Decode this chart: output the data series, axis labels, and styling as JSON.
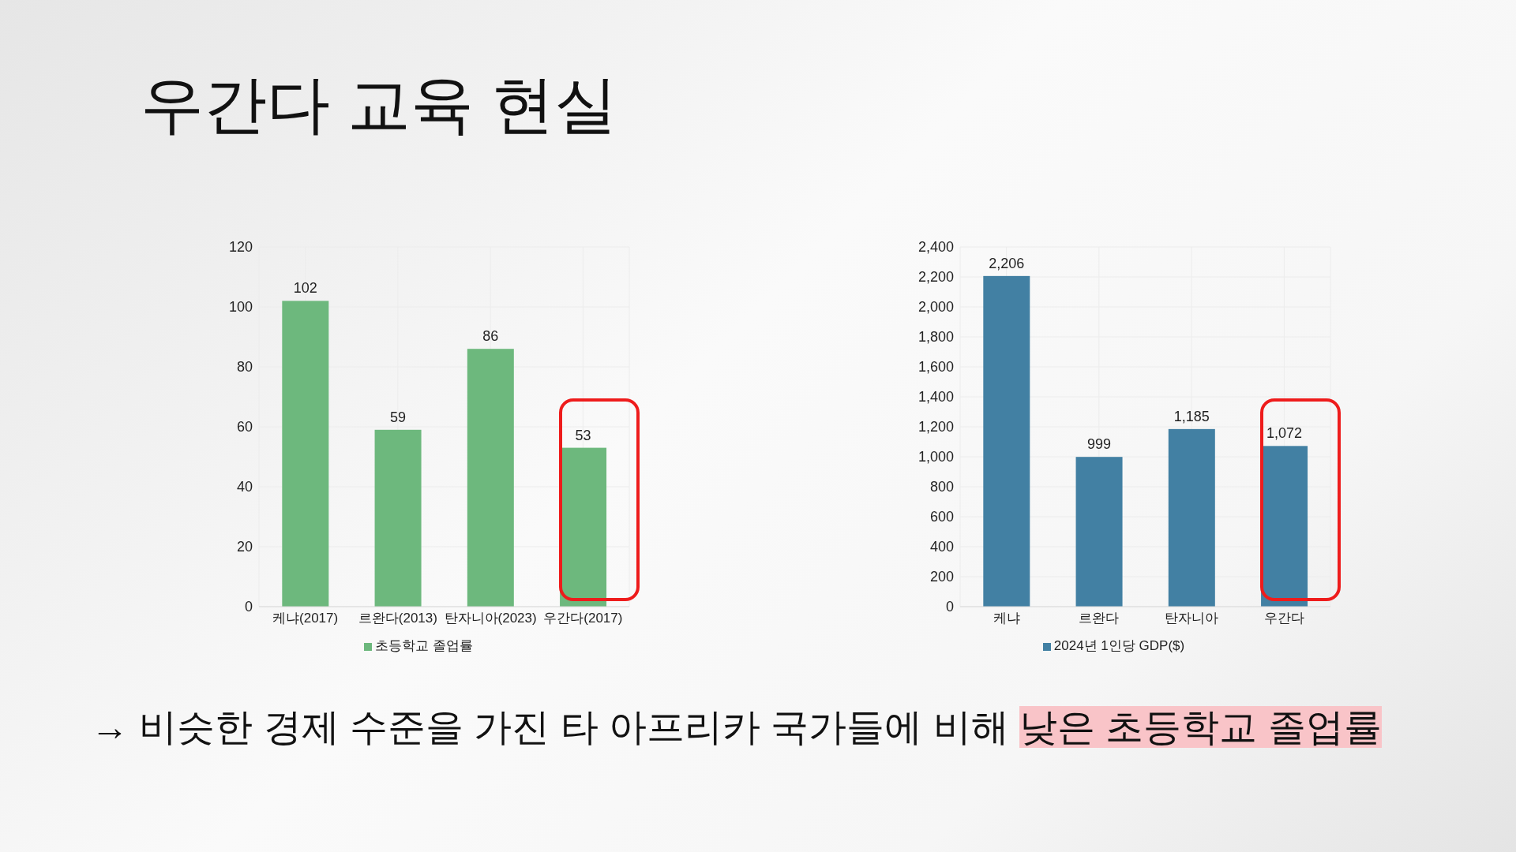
{
  "chart_data": [
    {
      "type": "bar",
      "title": "우간다 교육 현실",
      "categories": [
        "케냐(2017)",
        "르완다(2013)",
        "탄자니아(2023)",
        "우간다(2017)"
      ],
      "series": [
        {
          "name": "초등학교 졸업률",
          "color": "#6db87d",
          "values": [
            102,
            59,
            86,
            53
          ]
        }
      ],
      "ylim": [
        0,
        120
      ],
      "yticks": [
        0,
        20,
        40,
        60,
        80,
        100,
        120
      ],
      "grid": true,
      "legend": "bottom",
      "data_labels": true,
      "annotations": [
        "→ 비슷한 경제 수준을 가진 타 아프리카 국가들에 비해 ",
        "낮은 초등학교 졸업률"
      ]
    },
    {
      "type": "bar",
      "categories": [
        "케냐",
        "르완다",
        "탄자니아",
        "우간다"
      ],
      "series": [
        {
          "name": "2024년 1인당 GDP($)",
          "color": "#4280a3",
          "values": [
            2206,
            999,
            1185,
            1072
          ],
          "value_labels": [
            "2,206",
            "999",
            "1,185",
            "1,072"
          ]
        }
      ],
      "ylim": [
        0,
        2400
      ],
      "yticks": [
        0,
        {
          "value": 200,
          "label": "200"
        },
        {
          "value": 400,
          "label": "400"
        },
        {
          "value": 600,
          "label": "600"
        },
        {
          "value": 800,
          "label": "800"
        },
        {
          "value": 1000,
          "label": "1,000"
        },
        {
          "value": 1200,
          "label": "1,200"
        },
        {
          "value": 1400,
          "label": "1,400"
        },
        {
          "value": 1600,
          "label": "1,600"
        },
        {
          "value": 1800,
          "label": "1,800"
        },
        {
          "value": 2000,
          "label": "2,000"
        },
        {
          "value": 2200,
          "label": "2,200"
        },
        {
          "value": 2400,
          "label": "2,400"
        }
      ],
      "grid": true,
      "legend": "bottom"
    }
  ]
}
